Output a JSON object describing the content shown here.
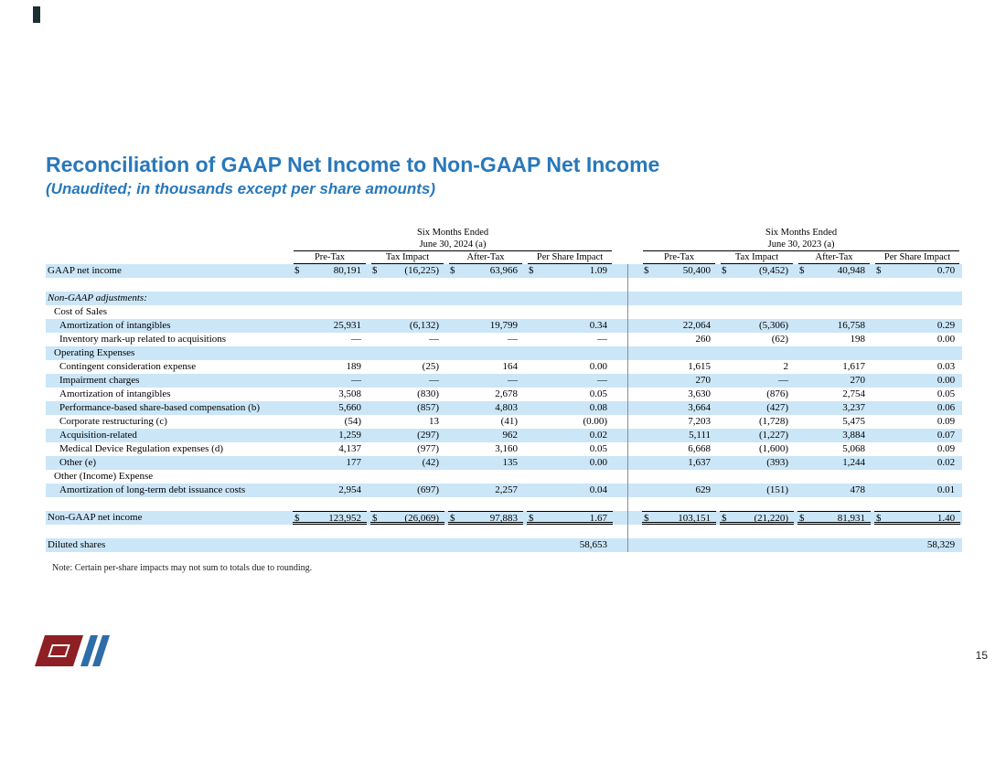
{
  "slide": {
    "title": "Reconciliation of GAAP Net Income to Non-GAAP Net Income",
    "subtitle": "(Unaudited; in thousands except per share amounts)",
    "note": "Note: Certain per-share impacts may not sum to totals due to rounding.",
    "page_number": "15"
  },
  "colors": {
    "title_blue": "#2878BB",
    "row_stripe_blue": "#cbe6f7",
    "divider_gray": "#8c8c8c",
    "logo_red": "#8e1f24",
    "logo_blue": "#2d6da8"
  },
  "table": {
    "groups": [
      {
        "period_line1": "Six Months Ended",
        "period_line2": "June 30, 2024 (a)"
      },
      {
        "period_line1": "Six Months Ended",
        "period_line2": "June 30, 2023 (a)"
      }
    ],
    "column_headers": [
      "Pre-Tax",
      "Tax Impact",
      "After-Tax",
      "Per Share Impact"
    ],
    "rows": [
      {
        "type": "data",
        "label": "GAAP net income",
        "indent": 0,
        "dollar": true,
        "shade": true,
        "v2024": [
          "80,191",
          "(16,225)",
          "63,966",
          "1.09"
        ],
        "v2023": [
          "50,400",
          "(9,452)",
          "40,948",
          "0.70"
        ]
      },
      {
        "type": "blank"
      },
      {
        "type": "section",
        "label": "Non-GAAP adjustments:",
        "indent": 0,
        "italic": true,
        "shade": true
      },
      {
        "type": "section",
        "label": "Cost of Sales",
        "indent": 1
      },
      {
        "type": "data",
        "label": "Amortization of intangibles",
        "indent": 2,
        "shade": true,
        "v2024": [
          "25,931",
          "(6,132)",
          "19,799",
          "0.34"
        ],
        "v2023": [
          "22,064",
          "(5,306)",
          "16,758",
          "0.29"
        ]
      },
      {
        "type": "data",
        "label": "Inventory mark-up related to acquisitions",
        "indent": 2,
        "v2024": [
          "—",
          "—",
          "—",
          "—"
        ],
        "v2023": [
          "260",
          "(62)",
          "198",
          "0.00"
        ]
      },
      {
        "type": "section",
        "label": "Operating Expenses",
        "indent": 1,
        "shade": true
      },
      {
        "type": "data",
        "label": "Contingent consideration expense",
        "indent": 2,
        "v2024": [
          "189",
          "(25)",
          "164",
          "0.00"
        ],
        "v2023": [
          "1,615",
          "2",
          "1,617",
          "0.03"
        ]
      },
      {
        "type": "data",
        "label": "Impairment charges",
        "indent": 2,
        "shade": true,
        "v2024": [
          "—",
          "—",
          "—",
          "—"
        ],
        "v2023": [
          "270",
          "—",
          "270",
          "0.00"
        ]
      },
      {
        "type": "data",
        "label": "Amortization of intangibles",
        "indent": 2,
        "v2024": [
          "3,508",
          "(830)",
          "2,678",
          "0.05"
        ],
        "v2023": [
          "3,630",
          "(876)",
          "2,754",
          "0.05"
        ]
      },
      {
        "type": "data",
        "label": "Performance-based share-based compensation (b)",
        "indent": 2,
        "shade": true,
        "v2024": [
          "5,660",
          "(857)",
          "4,803",
          "0.08"
        ],
        "v2023": [
          "3,664",
          "(427)",
          "3,237",
          "0.06"
        ]
      },
      {
        "type": "data",
        "label": "Corporate restructuring (c)",
        "indent": 2,
        "v2024": [
          "(54)",
          "13",
          "(41)",
          "(0.00)"
        ],
        "v2023": [
          "7,203",
          "(1,728)",
          "5,475",
          "0.09"
        ]
      },
      {
        "type": "data",
        "label": "Acquisition-related",
        "indent": 2,
        "shade": true,
        "v2024": [
          "1,259",
          "(297)",
          "962",
          "0.02"
        ],
        "v2023": [
          "5,111",
          "(1,227)",
          "3,884",
          "0.07"
        ]
      },
      {
        "type": "data",
        "label": "Medical Device Regulation expenses (d)",
        "indent": 2,
        "v2024": [
          "4,137",
          "(977)",
          "3,160",
          "0.05"
        ],
        "v2023": [
          "6,668",
          "(1,600)",
          "5,068",
          "0.09"
        ]
      },
      {
        "type": "data",
        "label": "Other (e)",
        "indent": 2,
        "shade": true,
        "v2024": [
          "177",
          "(42)",
          "135",
          "0.00"
        ],
        "v2023": [
          "1,637",
          "(393)",
          "1,244",
          "0.02"
        ]
      },
      {
        "type": "section",
        "label": "Other (Income) Expense",
        "indent": 1
      },
      {
        "type": "data",
        "label": "Amortization of long-term debt issuance costs",
        "indent": 2,
        "shade": true,
        "v2024": [
          "2,954",
          "(697)",
          "2,257",
          "0.04"
        ],
        "v2023": [
          "629",
          "(151)",
          "478",
          "0.01"
        ]
      },
      {
        "type": "blank"
      },
      {
        "type": "total",
        "label": "Non-GAAP net income",
        "indent": 0,
        "dollar": true,
        "shade": true,
        "v2024": [
          "123,952",
          "(26,069)",
          "97,883",
          "1.67"
        ],
        "v2023": [
          "103,151",
          "(21,220)",
          "81,931",
          "1.40"
        ]
      },
      {
        "type": "blank"
      },
      {
        "type": "shares",
        "label": "Diluted shares",
        "indent": 0,
        "shade": true,
        "v2024": [
          "",
          "",
          "",
          "58,653"
        ],
        "v2023": [
          "",
          "",
          "",
          "58,329"
        ]
      }
    ]
  }
}
